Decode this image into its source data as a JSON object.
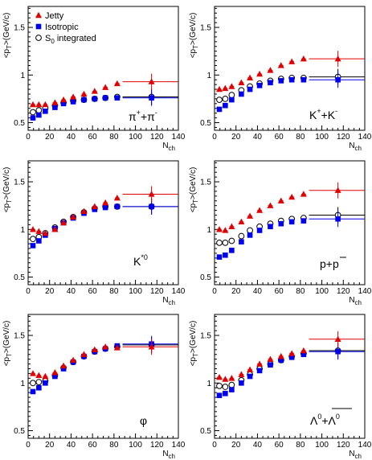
{
  "colors": {
    "jetty": "#e00000",
    "isotropic": "#0000ee",
    "s0": "#000000",
    "axis": "#000000"
  },
  "legend": {
    "jetty": "Jetty",
    "isotropic": "Isotropic",
    "s0_base": "S",
    "s0_sub": "0",
    "s0_rest": " integrated"
  },
  "axes": {
    "y_base": "<p",
    "y_sub": "T",
    "y_rest": ">(GeV/c)",
    "x_base": "N",
    "x_sub": "ch"
  },
  "chart_data": [
    {
      "type": "scatter",
      "particle": [
        "π",
        "+",
        "+π",
        "-"
      ],
      "xlim": [
        0,
        140
      ],
      "ylim": [
        0.42,
        1.72
      ],
      "xticks": [
        "0",
        "20",
        "40",
        "60",
        "80",
        "100",
        "120",
        "140"
      ],
      "yticks": [
        "0.5",
        "1",
        "1.5"
      ],
      "x": [
        4.5,
        10,
        16,
        25,
        33,
        42,
        52,
        62,
        72,
        83
      ],
      "high_x": 115,
      "high_range": [
        88,
        140
      ],
      "series": [
        {
          "key": "jetty",
          "values": [
            0.69,
            0.69,
            0.69,
            0.71,
            0.74,
            0.77,
            0.8,
            0.83,
            0.87,
            0.91
          ],
          "high": 0.93
        },
        {
          "key": "isotropic",
          "values": [
            0.55,
            0.58,
            0.62,
            0.66,
            0.7,
            0.72,
            0.74,
            0.75,
            0.76,
            0.76
          ],
          "high": 0.76
        },
        {
          "key": "s0",
          "values": [
            0.61,
            0.63,
            0.65,
            0.68,
            0.71,
            0.73,
            0.74,
            0.75,
            0.76,
            0.77
          ],
          "high": 0.77
        }
      ]
    },
    {
      "type": "scatter",
      "particle": [
        "K",
        "+",
        "+K",
        "-"
      ],
      "xlim": [
        0,
        140
      ],
      "ylim": [
        0.42,
        1.72
      ],
      "xticks": [
        "0",
        "20",
        "40",
        "60",
        "80",
        "100",
        "120",
        "140"
      ],
      "yticks": [
        "0.5",
        "1",
        "1.5"
      ],
      "x": [
        4.5,
        10,
        16,
        25,
        33,
        42,
        52,
        62,
        72,
        83
      ],
      "high_x": 115,
      "high_range": [
        88,
        140
      ],
      "series": [
        {
          "key": "jetty",
          "values": [
            0.85,
            0.86,
            0.88,
            0.92,
            0.97,
            1.01,
            1.05,
            1.1,
            1.14,
            1.17
          ],
          "high": 1.17
        },
        {
          "key": "isotropic",
          "values": [
            0.64,
            0.68,
            0.74,
            0.8,
            0.85,
            0.89,
            0.92,
            0.94,
            0.95,
            0.95
          ],
          "high": 0.95
        },
        {
          "key": "s0",
          "values": [
            0.74,
            0.75,
            0.79,
            0.84,
            0.88,
            0.91,
            0.94,
            0.96,
            0.97,
            0.97
          ],
          "high": 0.98
        }
      ]
    },
    {
      "type": "scatter",
      "particle": [
        "K",
        "*0",
        "",
        ""
      ],
      "xlim": [
        0,
        140
      ],
      "ylim": [
        0.42,
        1.72
      ],
      "xticks": [
        "0",
        "20",
        "40",
        "60",
        "80",
        "100",
        "120",
        "140"
      ],
      "yticks": [
        "0.5",
        "1",
        "1.5"
      ],
      "x": [
        4.5,
        10,
        16,
        25,
        33,
        42,
        52,
        62,
        72,
        83
      ],
      "high_x": 115,
      "high_range": [
        88,
        140
      ],
      "series": [
        {
          "key": "jetty",
          "values": [
            1.0,
            0.98,
            0.96,
            1.0,
            1.07,
            1.13,
            1.19,
            1.24,
            1.28,
            1.33
          ],
          "high": 1.37
        },
        {
          "key": "isotropic",
          "values": [
            0.83,
            0.88,
            0.94,
            1.01,
            1.07,
            1.12,
            1.17,
            1.21,
            1.23,
            1.24
          ],
          "high": 1.24
        },
        {
          "key": "s0",
          "values": [
            0.9,
            0.92,
            0.96,
            1.02,
            1.08,
            1.13,
            1.18,
            1.22,
            1.24,
            1.24
          ],
          "high": 1.24
        }
      ]
    },
    {
      "type": "scatter",
      "particle": [
        "p+",
        "",
        "p",
        ""
      ],
      "xlim": [
        0,
        140
      ],
      "ylim": [
        0.42,
        1.72
      ],
      "xticks": [
        "0",
        "20",
        "40",
        "60",
        "80",
        "100",
        "120",
        "140"
      ],
      "yticks": [
        "0.5",
        "1",
        "1.5"
      ],
      "x": [
        4.5,
        10,
        16,
        25,
        33,
        42,
        52,
        62,
        72,
        83
      ],
      "high_x": 115,
      "high_range": [
        88,
        140
      ],
      "series": [
        {
          "key": "jetty",
          "values": [
            1.0,
            0.99,
            1.03,
            1.08,
            1.14,
            1.2,
            1.25,
            1.3,
            1.34,
            1.37
          ],
          "high": 1.41
        },
        {
          "key": "isotropic",
          "values": [
            0.71,
            0.73,
            0.78,
            0.87,
            0.94,
            0.99,
            1.03,
            1.06,
            1.08,
            1.09
          ],
          "high": 1.11
        },
        {
          "key": "s0",
          "values": [
            0.86,
            0.86,
            0.88,
            0.93,
            0.99,
            1.03,
            1.06,
            1.09,
            1.11,
            1.12
          ],
          "high": 1.15
        }
      ]
    },
    {
      "type": "scatter",
      "particle": [
        "φ",
        "",
        "",
        ""
      ],
      "xlim": [
        0,
        140
      ],
      "ylim": [
        0.42,
        1.72
      ],
      "xticks": [
        "0",
        "20",
        "40",
        "60",
        "80",
        "100",
        "120",
        "140"
      ],
      "yticks": [
        "0.5",
        "1",
        "1.5"
      ],
      "x": [
        4.5,
        10,
        16,
        25,
        33,
        42,
        52,
        62,
        72,
        83
      ],
      "high_x": 115,
      "high_range": [
        88,
        140
      ],
      "series": [
        {
          "key": "jetty",
          "values": [
            1.1,
            1.08,
            1.07,
            1.11,
            1.18,
            1.24,
            1.3,
            1.35,
            1.38,
            1.37
          ],
          "high": 1.38
        },
        {
          "key": "isotropic",
          "values": [
            0.91,
            0.95,
            1.0,
            1.07,
            1.15,
            1.22,
            1.28,
            1.33,
            1.36,
            1.39
          ],
          "high": 1.41
        },
        {
          "key": "s0",
          "values": [
            1.0,
            1.01,
            1.02,
            1.08,
            1.16,
            1.22,
            1.28,
            1.33,
            1.36,
            1.38
          ],
          "high": 1.4
        }
      ]
    },
    {
      "type": "scatter",
      "particle": [
        "Λ",
        "0",
        "+Λ",
        "0"
      ],
      "xlim": [
        0,
        140
      ],
      "ylim": [
        0.42,
        1.72
      ],
      "xticks": [
        "0",
        "20",
        "40",
        "60",
        "80",
        "100",
        "120",
        "140"
      ],
      "yticks": [
        "0.5",
        "1",
        "1.5"
      ],
      "x": [
        4.5,
        10,
        16,
        25,
        33,
        42,
        52,
        62,
        72,
        83
      ],
      "high_x": 115,
      "high_range": [
        88,
        140
      ],
      "series": [
        {
          "key": "jetty",
          "values": [
            1.06,
            1.04,
            1.05,
            1.09,
            1.14,
            1.2,
            1.25,
            1.28,
            1.31,
            1.34
          ],
          "high": 1.46
        },
        {
          "key": "isotropic",
          "values": [
            0.87,
            0.89,
            0.93,
            1.0,
            1.07,
            1.13,
            1.19,
            1.24,
            1.27,
            1.3
          ],
          "high": 1.33
        },
        {
          "key": "s0",
          "values": [
            0.97,
            0.96,
            0.98,
            1.03,
            1.09,
            1.15,
            1.2,
            1.24,
            1.28,
            1.31
          ],
          "high": 1.34
        }
      ]
    }
  ]
}
